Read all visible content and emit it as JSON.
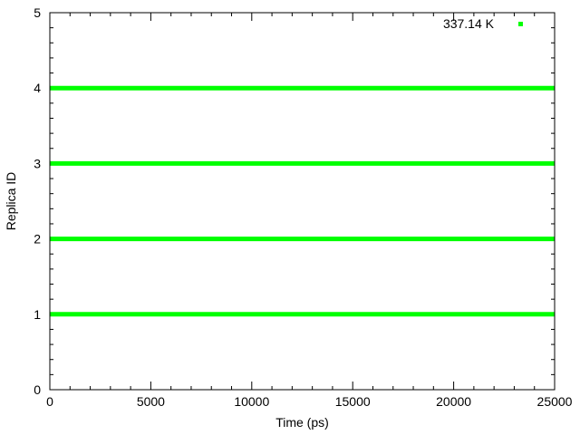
{
  "chart_data": {
    "type": "scatter",
    "xlabel": "Time (ps)",
    "ylabel": "Replica ID",
    "xlim": [
      0,
      25000
    ],
    "ylim": [
      0,
      5
    ],
    "x_ticks": [
      "0",
      "5000",
      "10000",
      "15000",
      "20000",
      "25000"
    ],
    "y_ticks": [
      "0",
      "1",
      "2",
      "3",
      "4",
      "5"
    ],
    "x_minor_step": 1000,
    "y_minor_step": 0.2,
    "grid": false,
    "legend_position": "top-right",
    "series": [
      {
        "name": "337.14 K",
        "color": "#00ff00",
        "marker": "square",
        "x_range": [
          0,
          25000
        ],
        "y_levels": [
          1,
          2,
          3,
          4
        ]
      }
    ]
  }
}
